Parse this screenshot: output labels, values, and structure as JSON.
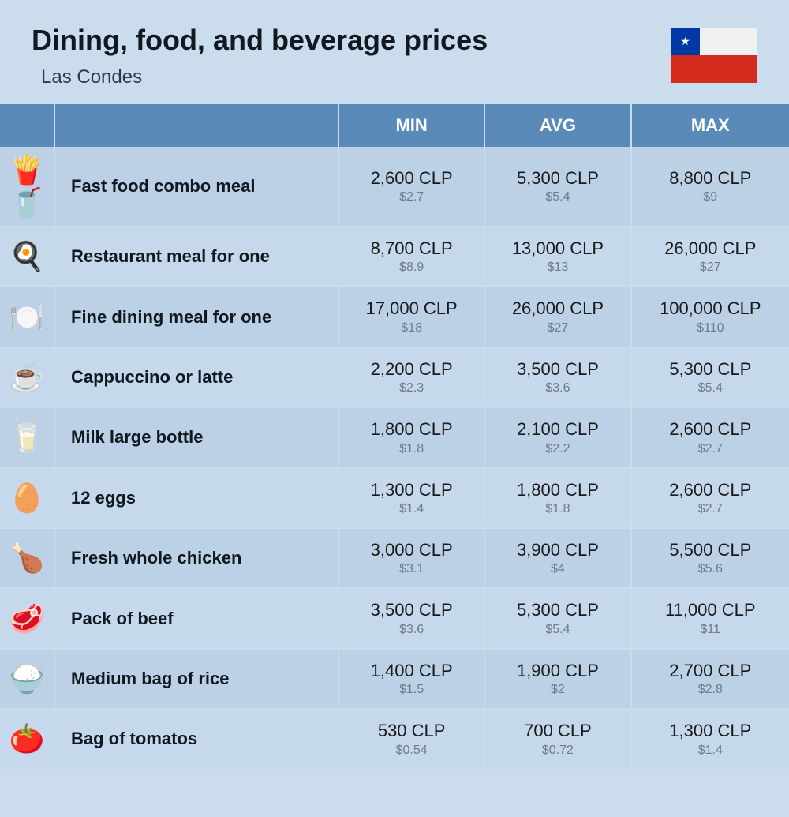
{
  "header": {
    "title": "Dining, food, and beverage prices",
    "subtitle": "Las Condes",
    "flag": {
      "star": "★",
      "blue": "#0039a6",
      "white": "#f0f0f0",
      "red": "#d52b1e"
    }
  },
  "table": {
    "columns": {
      "min": "MIN",
      "avg": "AVG",
      "max": "MAX"
    },
    "colors": {
      "header_bg": "#5a8bb8",
      "header_fg": "#ffffff",
      "row_odd": "#bcd0e6",
      "row_even": "#c6d8eb",
      "border": "#cbdded",
      "price_local_color": "#1a1a1a",
      "price_usd_color": "#6b7c8e"
    },
    "rows": [
      {
        "icon": "🍟🥤",
        "label": "Fast food combo meal",
        "min_local": "2,600 CLP",
        "min_usd": "$2.7",
        "avg_local": "5,300 CLP",
        "avg_usd": "$5.4",
        "max_local": "8,800 CLP",
        "max_usd": "$9"
      },
      {
        "icon": "🍳",
        "label": "Restaurant meal for one",
        "min_local": "8,700 CLP",
        "min_usd": "$8.9",
        "avg_local": "13,000 CLP",
        "avg_usd": "$13",
        "max_local": "26,000 CLP",
        "max_usd": "$27"
      },
      {
        "icon": "🍽️",
        "label": "Fine dining meal for one",
        "min_local": "17,000 CLP",
        "min_usd": "$18",
        "avg_local": "26,000 CLP",
        "avg_usd": "$27",
        "max_local": "100,000 CLP",
        "max_usd": "$110"
      },
      {
        "icon": "☕",
        "label": "Cappuccino or latte",
        "min_local": "2,200 CLP",
        "min_usd": "$2.3",
        "avg_local": "3,500 CLP",
        "avg_usd": "$3.6",
        "max_local": "5,300 CLP",
        "max_usd": "$5.4"
      },
      {
        "icon": "🥛",
        "label": "Milk large bottle",
        "min_local": "1,800 CLP",
        "min_usd": "$1.8",
        "avg_local": "2,100 CLP",
        "avg_usd": "$2.2",
        "max_local": "2,600 CLP",
        "max_usd": "$2.7"
      },
      {
        "icon": "🥚",
        "label": "12 eggs",
        "min_local": "1,300 CLP",
        "min_usd": "$1.4",
        "avg_local": "1,800 CLP",
        "avg_usd": "$1.8",
        "max_local": "2,600 CLP",
        "max_usd": "$2.7"
      },
      {
        "icon": "🍗",
        "label": "Fresh whole chicken",
        "min_local": "3,000 CLP",
        "min_usd": "$3.1",
        "avg_local": "3,900 CLP",
        "avg_usd": "$4",
        "max_local": "5,500 CLP",
        "max_usd": "$5.6"
      },
      {
        "icon": "🥩",
        "label": "Pack of beef",
        "min_local": "3,500 CLP",
        "min_usd": "$3.6",
        "avg_local": "5,300 CLP",
        "avg_usd": "$5.4",
        "max_local": "11,000 CLP",
        "max_usd": "$11"
      },
      {
        "icon": "🍚",
        "label": "Medium bag of rice",
        "min_local": "1,400 CLP",
        "min_usd": "$1.5",
        "avg_local": "1,900 CLP",
        "avg_usd": "$2",
        "max_local": "2,700 CLP",
        "max_usd": "$2.8"
      },
      {
        "icon": "🍅",
        "label": "Bag of tomatos",
        "min_local": "530 CLP",
        "min_usd": "$0.54",
        "avg_local": "700 CLP",
        "avg_usd": "$0.72",
        "max_local": "1,300 CLP",
        "max_usd": "$1.4"
      }
    ]
  }
}
